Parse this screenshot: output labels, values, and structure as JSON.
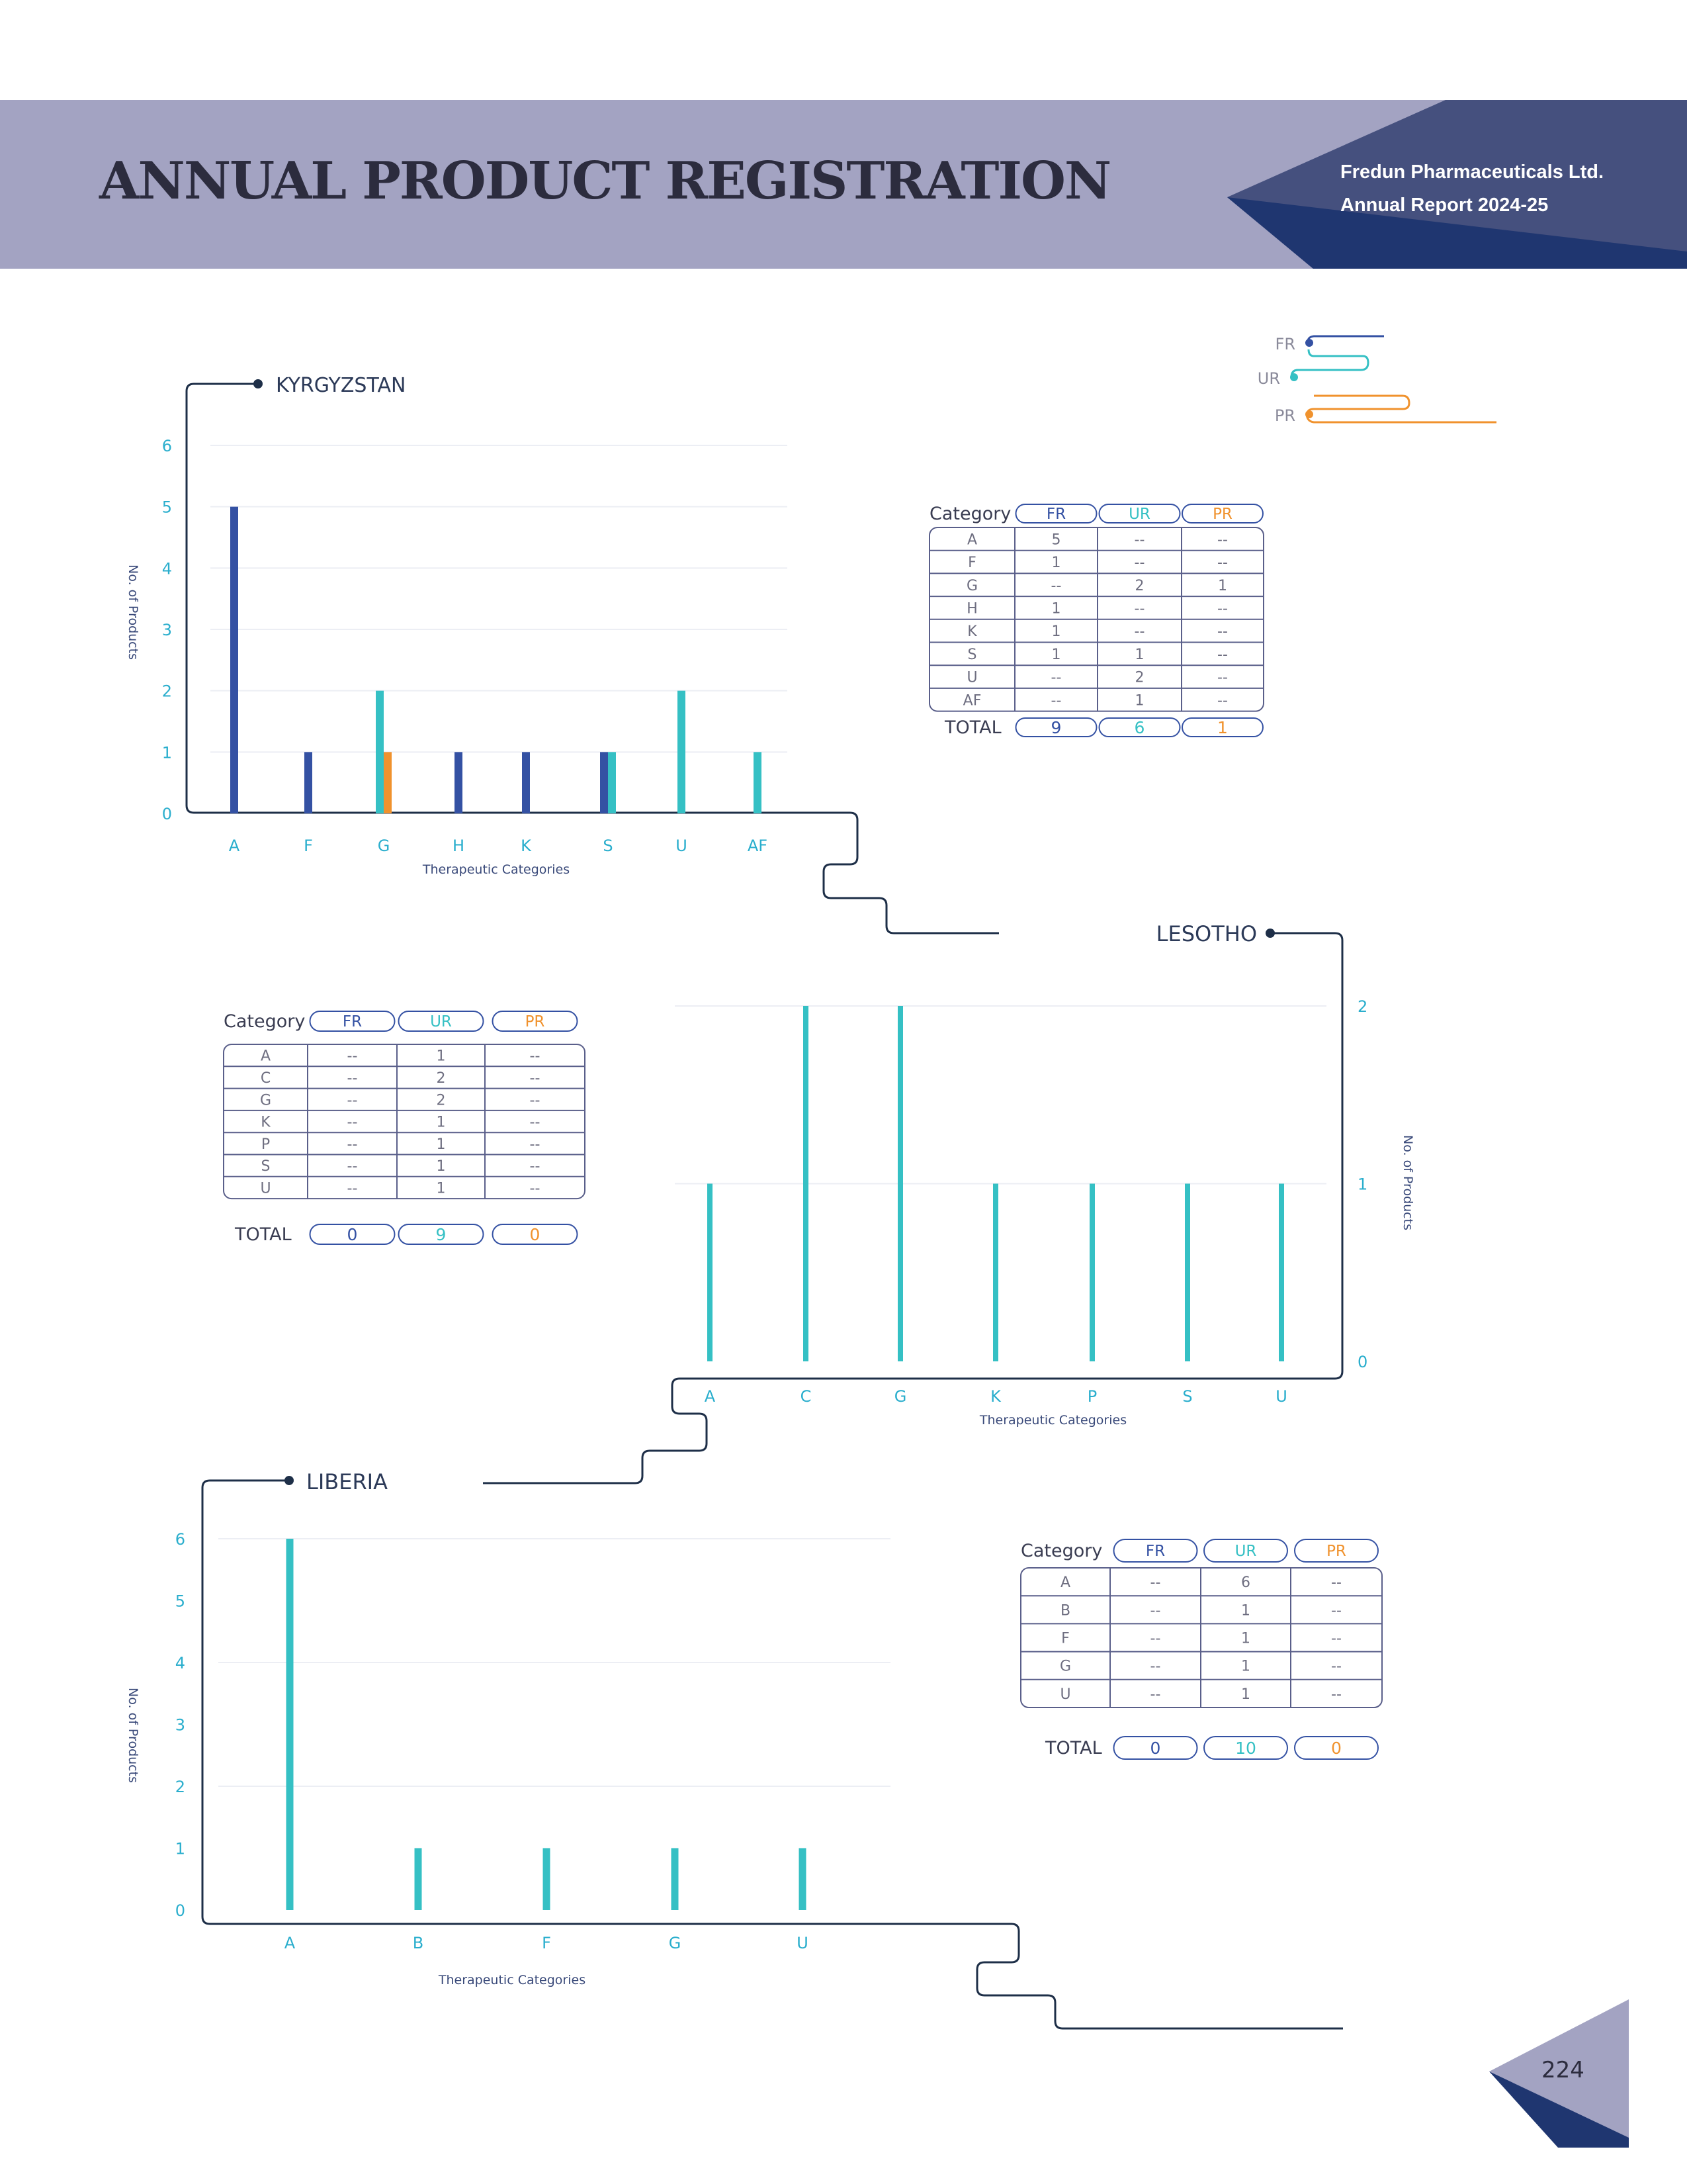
{
  "header": {
    "title": "ANNUAL PRODUCT REGISTRATION",
    "company": "Fredun Pharmaceuticals Ltd.",
    "report": "Annual Report 2024-25"
  },
  "colors": {
    "FR": "#3451a3",
    "UR": "#35c0c4",
    "PR": "#f0922d",
    "frame": "#1e2f48"
  },
  "legend": {
    "items": [
      "FR",
      "UR",
      "PR"
    ]
  },
  "page_number": "224",
  "chart_data": [
    {
      "type": "bar",
      "title": "KYRGYZSTAN",
      "xlabel": "Therapeutic Categories",
      "ylabel": "No. of Products",
      "ylim": [
        0,
        6
      ],
      "yticks": [
        "0",
        "1",
        "2",
        "3",
        "4",
        "5",
        "6"
      ],
      "categories": [
        "A",
        "F",
        "G",
        "H",
        "K",
        "S",
        "U",
        "AF"
      ],
      "series": [
        {
          "name": "FR",
          "values": [
            5,
            1,
            0,
            1,
            1,
            1,
            0,
            0
          ]
        },
        {
          "name": "UR",
          "values": [
            0,
            0,
            2,
            0,
            0,
            1,
            2,
            1
          ]
        },
        {
          "name": "PR",
          "values": [
            0,
            0,
            1,
            0,
            0,
            0,
            0,
            0
          ]
        }
      ],
      "table": {
        "header": [
          "Category",
          "FR",
          "UR",
          "PR"
        ],
        "rows": [
          [
            "A",
            "5",
            "--",
            "--"
          ],
          [
            "F",
            "1",
            "--",
            "--"
          ],
          [
            "G",
            "--",
            "2",
            "1"
          ],
          [
            "H",
            "1",
            "--",
            "--"
          ],
          [
            "K",
            "1",
            "--",
            "--"
          ],
          [
            "S",
            "1",
            "1",
            "--"
          ],
          [
            "U",
            "--",
            "2",
            "--"
          ],
          [
            "AF",
            "--",
            "1",
            "--"
          ]
        ],
        "total_label": "TOTAL",
        "totals": [
          "9",
          "6",
          "1"
        ]
      }
    },
    {
      "type": "bar",
      "title": "LESOTHO",
      "xlabel": "Therapeutic Categories",
      "ylabel": "No. of Products",
      "ylim": [
        0,
        2
      ],
      "yticks": [
        "0",
        "1",
        "2"
      ],
      "categories": [
        "A",
        "C",
        "G",
        "K",
        "P",
        "S",
        "U"
      ],
      "series": [
        {
          "name": "UR",
          "values": [
            1,
            2,
            2,
            1,
            1,
            1,
            1
          ]
        }
      ],
      "table": {
        "header": [
          "Category",
          "FR",
          "UR",
          "PR"
        ],
        "rows": [
          [
            "A",
            "--",
            "1",
            "--"
          ],
          [
            "C",
            "--",
            "2",
            "--"
          ],
          [
            "G",
            "--",
            "2",
            "--"
          ],
          [
            "K",
            "--",
            "1",
            "--"
          ],
          [
            "P",
            "--",
            "1",
            "--"
          ],
          [
            "S",
            "--",
            "1",
            "--"
          ],
          [
            "U",
            "--",
            "1",
            "--"
          ]
        ],
        "total_label": "TOTAL",
        "totals": [
          "0",
          "9",
          "0"
        ]
      }
    },
    {
      "type": "bar",
      "title": "LIBERIA",
      "xlabel": "Therapeutic Categories",
      "ylabel": "No. of Products",
      "ylim": [
        0,
        6
      ],
      "yticks": [
        "0",
        "1",
        "2",
        "3",
        "4",
        "5",
        "6"
      ],
      "categories": [
        "A",
        "B",
        "F",
        "G",
        "U"
      ],
      "series": [
        {
          "name": "UR",
          "values": [
            6,
            1,
            1,
            1,
            1
          ]
        }
      ],
      "table": {
        "header": [
          "Category",
          "FR",
          "UR",
          "PR"
        ],
        "rows": [
          [
            "A",
            "--",
            "6",
            "--"
          ],
          [
            "B",
            "--",
            "1",
            "--"
          ],
          [
            "F",
            "--",
            "1",
            "--"
          ],
          [
            "G",
            "--",
            "1",
            "--"
          ],
          [
            "U",
            "--",
            "1",
            "--"
          ]
        ],
        "total_label": "TOTAL",
        "totals": [
          "0",
          "10",
          "0"
        ]
      }
    }
  ]
}
